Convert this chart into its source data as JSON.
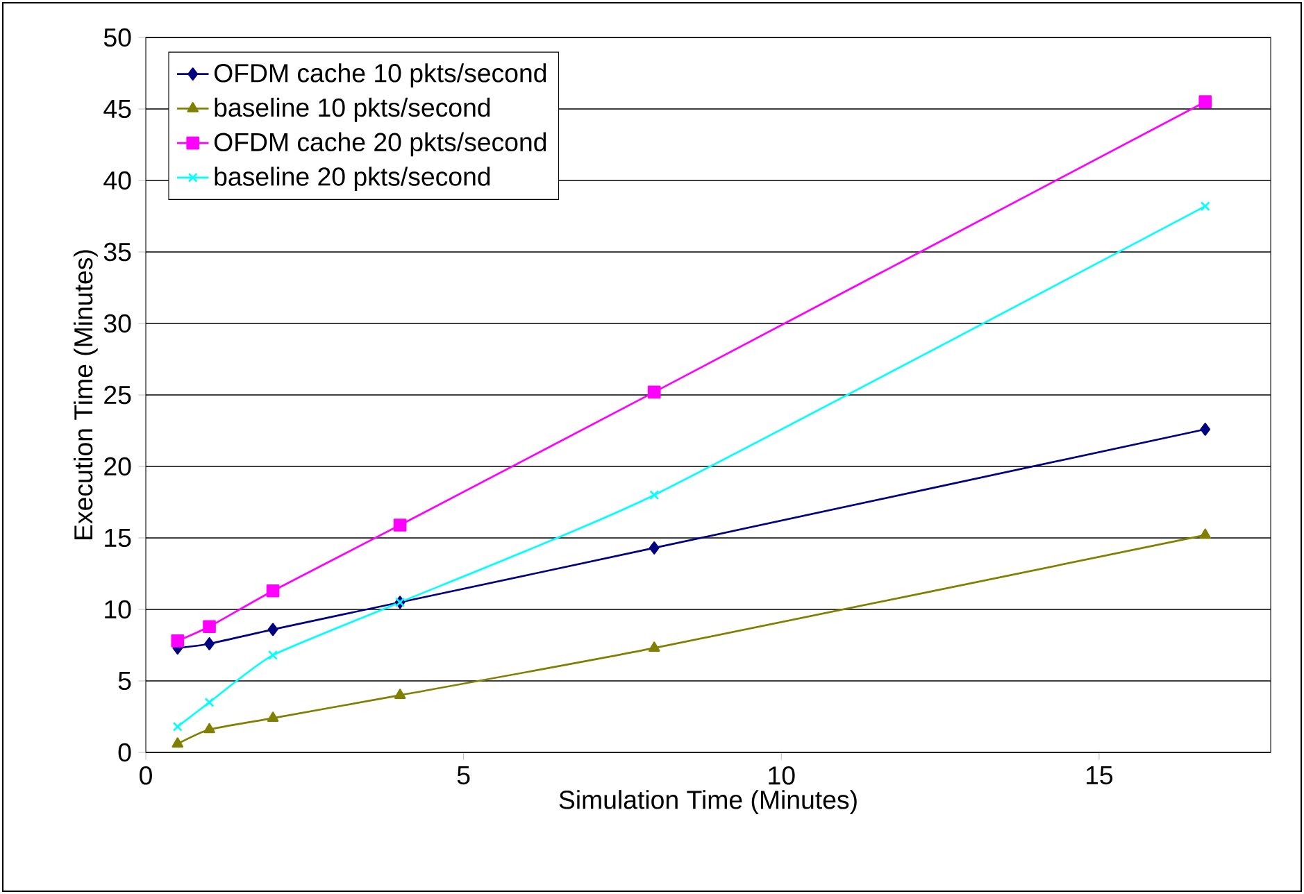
{
  "chart_data": {
    "type": "line",
    "xlabel": "Simulation Time (Minutes)",
    "ylabel": "Execution Time (Minutes)",
    "xlim": [
      0,
      17.7
    ],
    "ylim": [
      0,
      50
    ],
    "xticks": [
      0,
      5,
      10,
      15
    ],
    "yticks": [
      0,
      5,
      10,
      15,
      20,
      25,
      30,
      35,
      40,
      45,
      50
    ],
    "grid": "y",
    "legend": "top left",
    "x": [
      0.5,
      1,
      2,
      4,
      8,
      16.67
    ],
    "series": [
      {
        "name": "OFDM cache 10 pkts/second",
        "color": "#000080",
        "marker": "diamond",
        "values": [
          7.3,
          7.6,
          8.6,
          10.5,
          14.3,
          22.6
        ]
      },
      {
        "name": "baseline 10 pkts/second",
        "color": "#808000",
        "marker": "triangle",
        "values": [
          0.6,
          1.6,
          2.4,
          4.0,
          7.3,
          15.2
        ]
      },
      {
        "name": "OFDM cache 20 pkts/second",
        "color": "#ff00ff",
        "marker": "square",
        "values": [
          7.8,
          8.8,
          11.3,
          15.9,
          25.2,
          45.5
        ]
      },
      {
        "name": "baseline 20 pkts/second",
        "color": "#00ffff",
        "marker": "cross",
        "values": [
          1.8,
          3.5,
          6.8,
          10.5,
          18.0,
          38.2
        ]
      }
    ]
  }
}
